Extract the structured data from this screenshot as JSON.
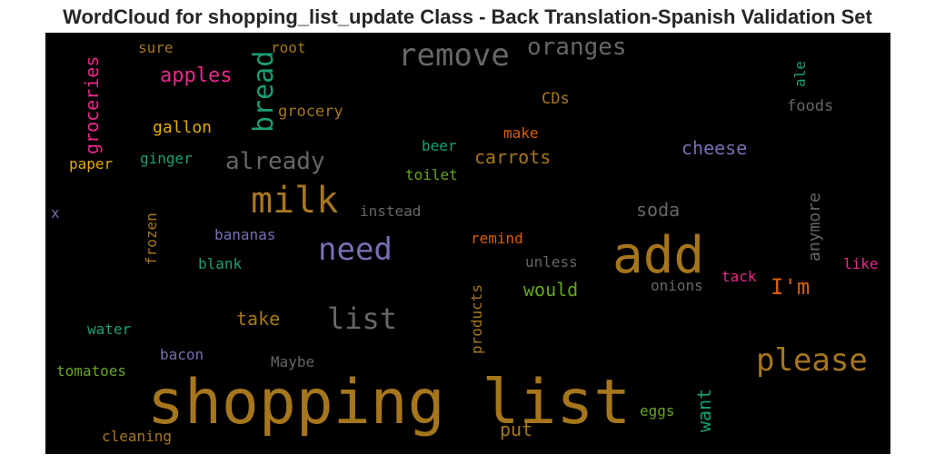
{
  "title": "WordCloud for shopping_list_update Class - Back Translation-Spanish Validation Set",
  "chart_data": {
    "type": "wordcloud",
    "background": "#000000",
    "title": "WordCloud for shopping_list_update Class - Back Translation-Spanish Validation Set",
    "words": [
      {
        "text": "shopping list",
        "color": "#A6761D"
      },
      {
        "text": "add",
        "color": "#A6761D"
      },
      {
        "text": "milk",
        "color": "#A6761D"
      },
      {
        "text": "remove",
        "color": "#666666"
      },
      {
        "text": "need",
        "color": "#7570B3"
      },
      {
        "text": "please",
        "color": "#A6761D"
      },
      {
        "text": "list",
        "color": "#666666"
      },
      {
        "text": "bread",
        "color": "#1B9E77"
      },
      {
        "text": "oranges",
        "color": "#666666"
      },
      {
        "text": "already",
        "color": "#666666"
      },
      {
        "text": "I'm",
        "color": "#D95F02"
      },
      {
        "text": "apples",
        "color": "#E7298A"
      },
      {
        "text": "groceries",
        "color": "#E7298A"
      },
      {
        "text": "cheese",
        "color": "#7570B3"
      },
      {
        "text": "carrots",
        "color": "#A6761D"
      },
      {
        "text": "soda",
        "color": "#666666"
      },
      {
        "text": "anymore",
        "color": "#666666"
      },
      {
        "text": "take",
        "color": "#A6761D"
      },
      {
        "text": "would",
        "color": "#66A61E"
      },
      {
        "text": "want",
        "color": "#1B9E77"
      },
      {
        "text": "put",
        "color": "#A6761D"
      },
      {
        "text": "gallon",
        "color": "#E6AB02"
      },
      {
        "text": "grocery",
        "color": "#A6761D"
      },
      {
        "text": "CDs",
        "color": "#A6761D"
      },
      {
        "text": "foods",
        "color": "#666666"
      },
      {
        "text": "ale",
        "color": "#1B9E77"
      },
      {
        "text": "sure",
        "color": "#A6761D"
      },
      {
        "text": "root",
        "color": "#A6761D"
      },
      {
        "text": "make",
        "color": "#D95F02"
      },
      {
        "text": "beer",
        "color": "#1B9E77"
      },
      {
        "text": "toilet",
        "color": "#66A61E"
      },
      {
        "text": "ginger",
        "color": "#1B9E77"
      },
      {
        "text": "paper",
        "color": "#E6AB02"
      },
      {
        "text": "x",
        "color": "#7570B3"
      },
      {
        "text": "frozen",
        "color": "#A6761D"
      },
      {
        "text": "instead",
        "color": "#666666"
      },
      {
        "text": "bananas",
        "color": "#7570B3"
      },
      {
        "text": "remind",
        "color": "#D95F02"
      },
      {
        "text": "blank",
        "color": "#1B9E77"
      },
      {
        "text": "unless",
        "color": "#666666"
      },
      {
        "text": "products",
        "color": "#A6761D"
      },
      {
        "text": "tack",
        "color": "#E7298A"
      },
      {
        "text": "like",
        "color": "#E7298A"
      },
      {
        "text": "onions",
        "color": "#666666"
      },
      {
        "text": "water",
        "color": "#1B9E77"
      },
      {
        "text": "bacon",
        "color": "#7570B3"
      },
      {
        "text": "Maybe",
        "color": "#666666"
      },
      {
        "text": "tomatoes",
        "color": "#66A61E"
      },
      {
        "text": "eggs",
        "color": "#66A61E"
      },
      {
        "text": "cleaning",
        "color": "#A6761D"
      }
    ]
  }
}
